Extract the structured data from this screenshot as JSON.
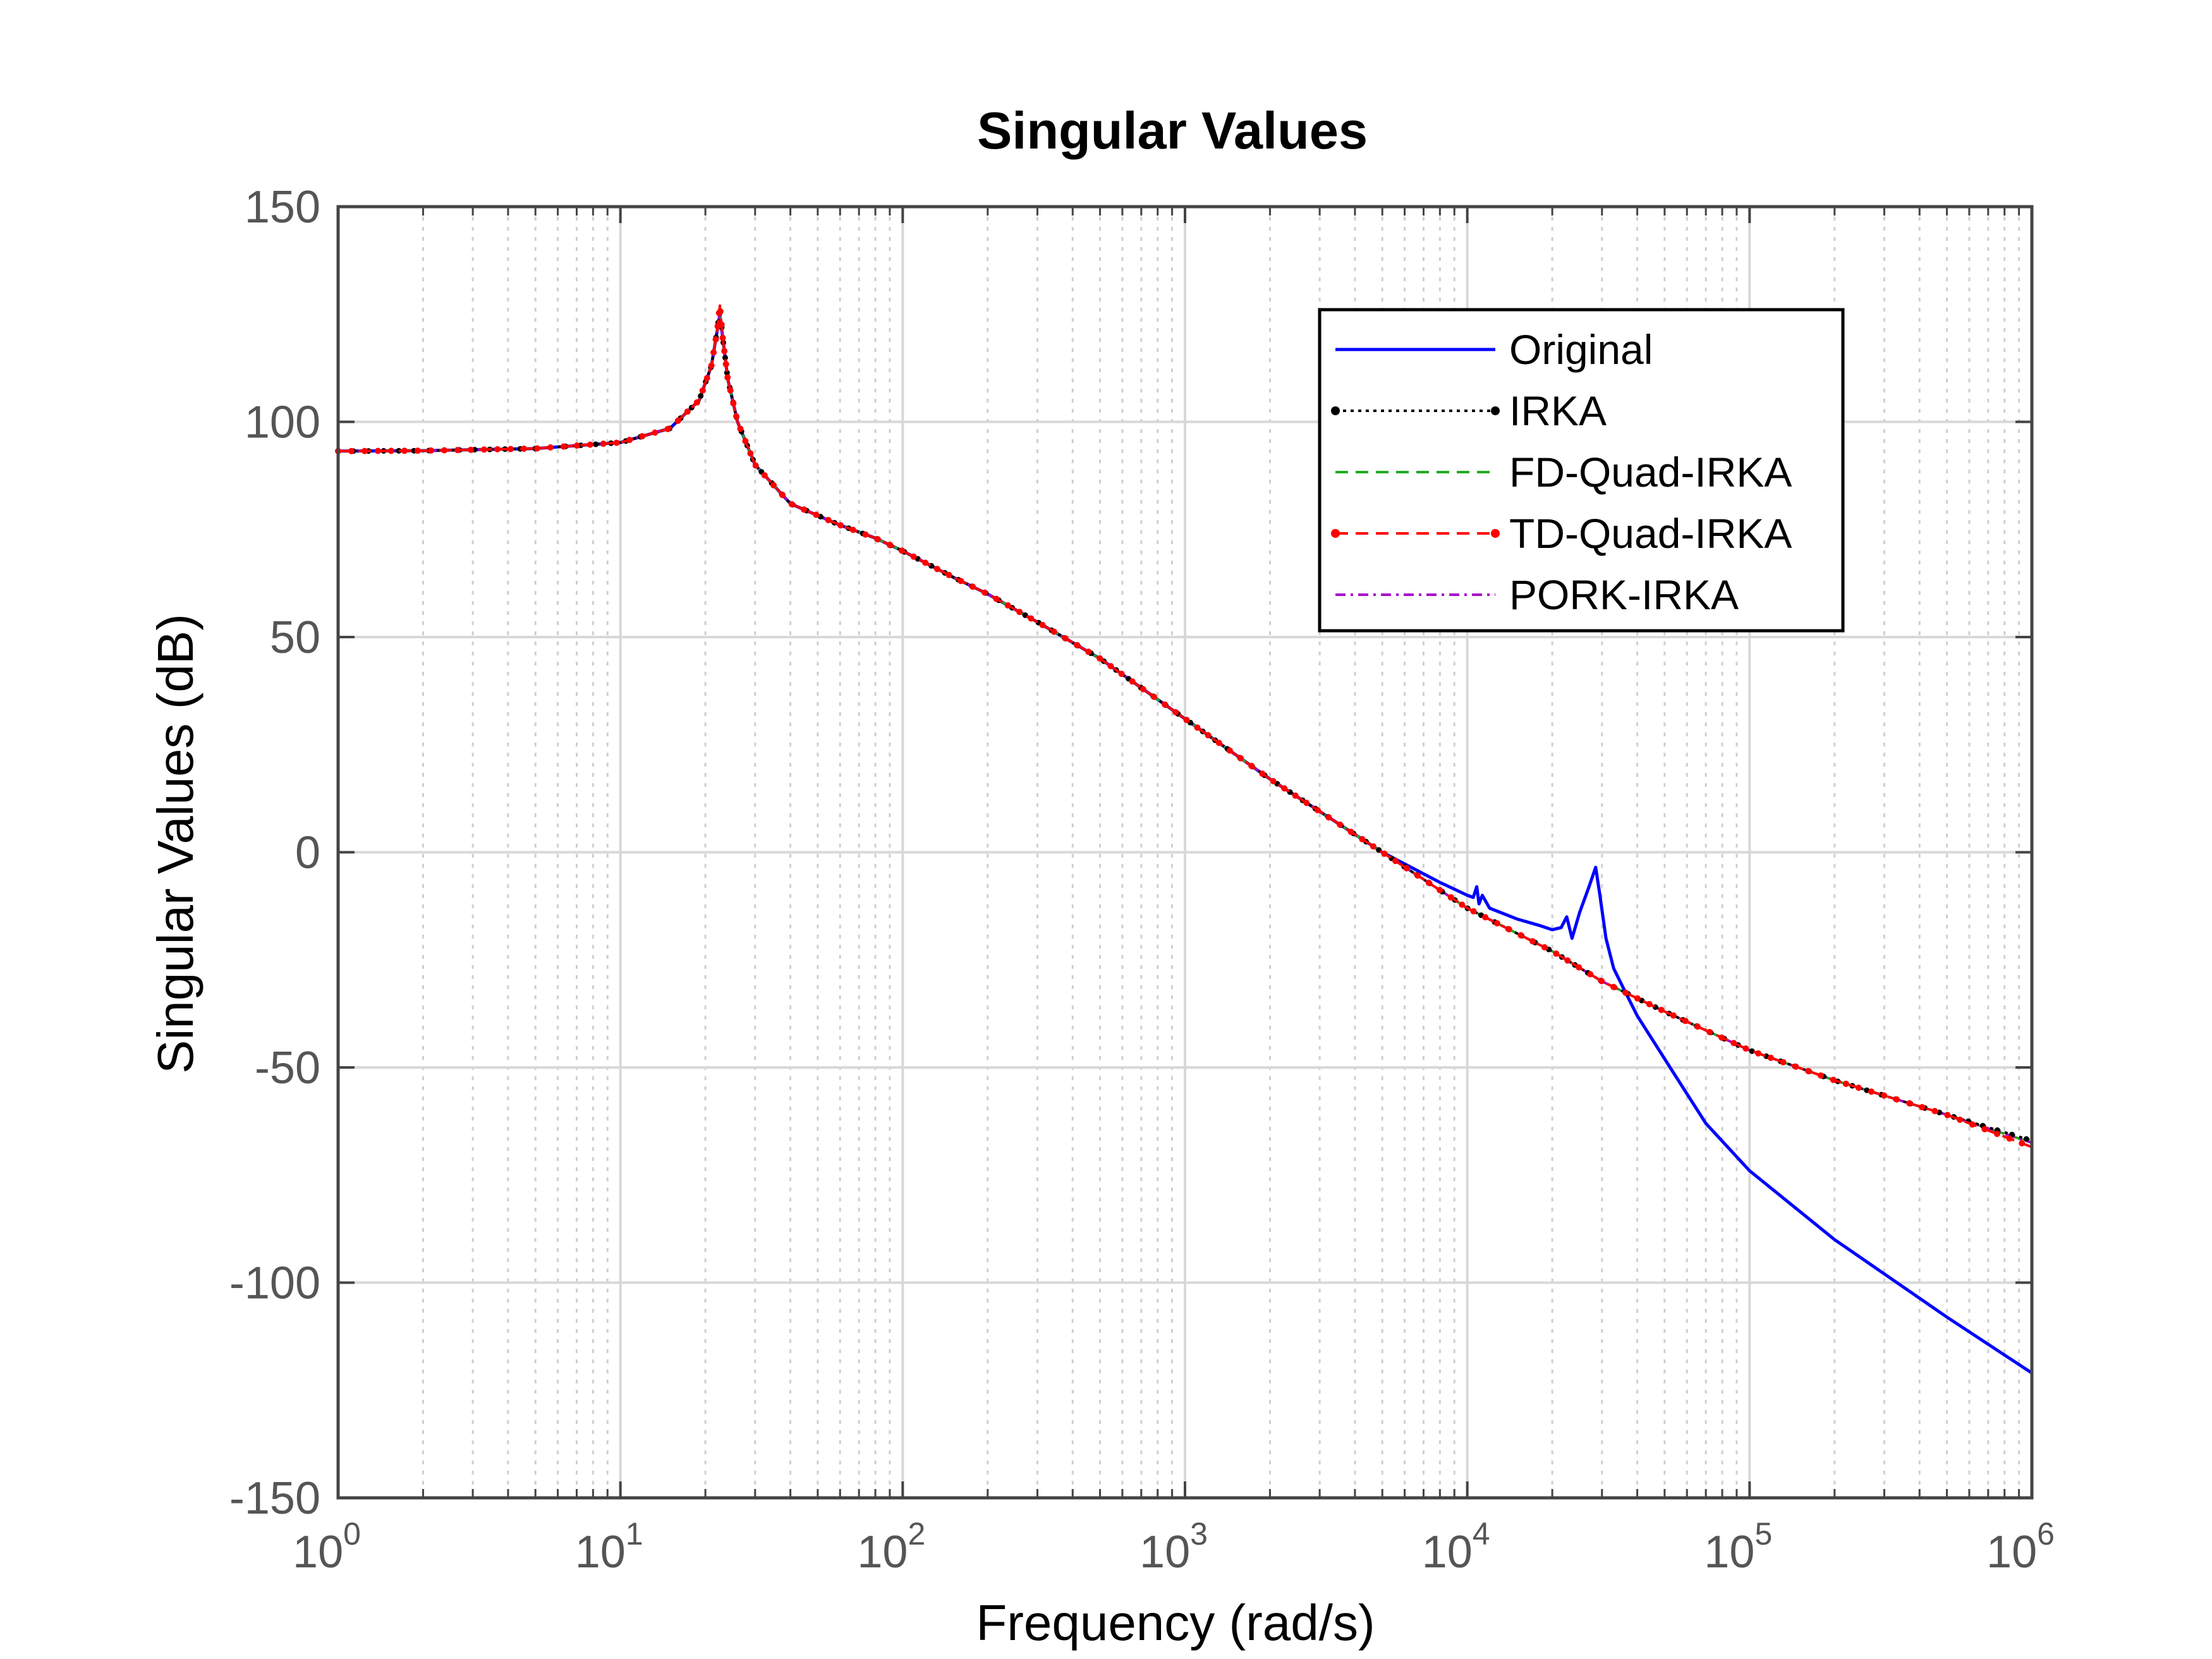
{
  "chart_data": {
    "type": "line",
    "title": "Singular Values",
    "xlabel": "Frequency (rad/s)",
    "ylabel": "Singular Values (dB)",
    "xscale": "log",
    "xlim": [
      1,
      1000000
    ],
    "ylim": [
      -150,
      150
    ],
    "grid": true,
    "legend_position": "top-right",
    "x_ticks": [
      {
        "base": "10",
        "exp": "0",
        "value": 1
      },
      {
        "base": "10",
        "exp": "1",
        "value": 10
      },
      {
        "base": "10",
        "exp": "2",
        "value": 100
      },
      {
        "base": "10",
        "exp": "3",
        "value": 1000
      },
      {
        "base": "10",
        "exp": "4",
        "value": 10000
      },
      {
        "base": "10",
        "exp": "5",
        "value": 100000
      },
      {
        "base": "10",
        "exp": "6",
        "value": 1000000
      }
    ],
    "y_ticks": [
      {
        "label": "150",
        "value": 150
      },
      {
        "label": "100",
        "value": 100
      },
      {
        "label": "50",
        "value": 50
      },
      {
        "label": "0",
        "value": 0
      },
      {
        "label": "-50",
        "value": -50
      },
      {
        "label": "-100",
        "value": -100
      },
      {
        "label": "-150",
        "value": -150
      }
    ],
    "series": [
      {
        "name": "Original",
        "color": "#0000ff",
        "style": "solid",
        "marker": "none",
        "x": [
          1,
          2,
          5,
          10,
          15,
          19,
          21,
          22,
          22.5,
          23,
          24,
          26,
          30,
          40,
          60,
          80,
          100,
          150,
          200,
          300,
          500,
          1000,
          2000,
          5000,
          8000,
          10000,
          10500,
          10800,
          11000,
          11300,
          12000,
          15000,
          18000,
          20000,
          21500,
          22500,
          23500,
          25000,
          27000,
          28500,
          29500,
          31000,
          33000,
          36000,
          40000,
          50000,
          70000,
          100000,
          200000,
          500000,
          1000000
        ],
        "y": [
          93.2,
          93.3,
          93.8,
          95.2,
          98.5,
          105,
          113,
          121,
          125,
          120,
          110,
          100,
          90,
          81,
          76,
          73,
          70,
          64,
          60,
          53.5,
          45,
          31,
          17,
          0,
          -7,
          -10,
          -10.5,
          -8,
          -12,
          -10,
          -13,
          -15.5,
          -17,
          -18,
          -17.5,
          -15,
          -20,
          -14,
          -8,
          -3.5,
          -10,
          -20,
          -27,
          -32,
          -38,
          -48,
          -63,
          -74,
          -90,
          -108,
          -121
        ]
      },
      {
        "name": "IRKA",
        "color": "#000000",
        "style": "dotted",
        "marker": "dot",
        "x": [
          1,
          2,
          5,
          10,
          15,
          19,
          21,
          22,
          22.5,
          23,
          24,
          26,
          30,
          40,
          60,
          80,
          100,
          150,
          200,
          300,
          500,
          1000,
          2000,
          5000,
          10000,
          20000,
          30000,
          50000,
          100000,
          200000,
          500000,
          1000000
        ],
        "y": [
          93.2,
          93.3,
          93.8,
          95.2,
          98.5,
          105,
          113,
          121,
          126,
          120,
          110,
          100,
          90,
          81,
          76,
          73,
          70,
          64,
          60,
          53.5,
          45,
          31,
          17,
          0,
          -13,
          -23,
          -30,
          -37,
          -46,
          -53,
          -61,
          -67
        ]
      },
      {
        "name": "FD-Quad-IRKA",
        "color": "#22aa22",
        "style": "dashed",
        "marker": "none",
        "x": [
          1,
          2,
          5,
          10,
          15,
          19,
          21,
          22,
          22.5,
          23,
          24,
          26,
          30,
          40,
          60,
          80,
          100,
          150,
          200,
          300,
          500,
          1000,
          2000,
          5000,
          10000,
          20000,
          30000,
          50000,
          100000,
          200000,
          500000,
          1000000
        ],
        "y": [
          93.2,
          93.3,
          93.8,
          95.2,
          98.5,
          105,
          113,
          121,
          126,
          120,
          110,
          100,
          90,
          81,
          76,
          73,
          70,
          64,
          60,
          53.5,
          45,
          31,
          17,
          0,
          -13,
          -23,
          -30,
          -37,
          -46,
          -53,
          -61,
          -67.5
        ]
      },
      {
        "name": "TD-Quad-IRKA",
        "color": "#ff0000",
        "style": "dashed",
        "marker": "dot",
        "x": [
          1,
          2,
          5,
          10,
          15,
          19,
          21,
          22,
          22.5,
          23,
          24,
          26,
          30,
          40,
          60,
          80,
          100,
          150,
          200,
          300,
          500,
          1000,
          2000,
          5000,
          10000,
          20000,
          30000,
          50000,
          100000,
          200000,
          500000,
          1000000
        ],
        "y": [
          93.2,
          93.3,
          93.8,
          95.2,
          98.5,
          105,
          113,
          121,
          127,
          120,
          110,
          100,
          90,
          81,
          76,
          73,
          70,
          64,
          60,
          53.5,
          45,
          31,
          17,
          0,
          -13,
          -23,
          -30,
          -37,
          -46,
          -53,
          -61,
          -68.5
        ]
      },
      {
        "name": "PORK-IRKA",
        "color": "#aa00cc",
        "style": "dashdot",
        "marker": "none",
        "x": [
          1,
          2,
          5,
          10,
          15,
          19,
          21,
          22,
          22.5,
          23,
          24,
          26,
          30,
          40,
          60,
          80,
          100,
          150,
          200,
          300,
          500,
          1000,
          2000,
          5000,
          10000,
          20000,
          30000,
          50000,
          100000,
          200000,
          500000,
          1000000
        ],
        "y": [
          93.2,
          93.3,
          93.8,
          95.2,
          98.5,
          105,
          113,
          121,
          125,
          120,
          110,
          100,
          90,
          81,
          76,
          73,
          70,
          64,
          60,
          53.5,
          45,
          31,
          17,
          0,
          -13,
          -23,
          -30,
          -37,
          -46,
          -53,
          -61,
          -67.5
        ]
      }
    ]
  }
}
